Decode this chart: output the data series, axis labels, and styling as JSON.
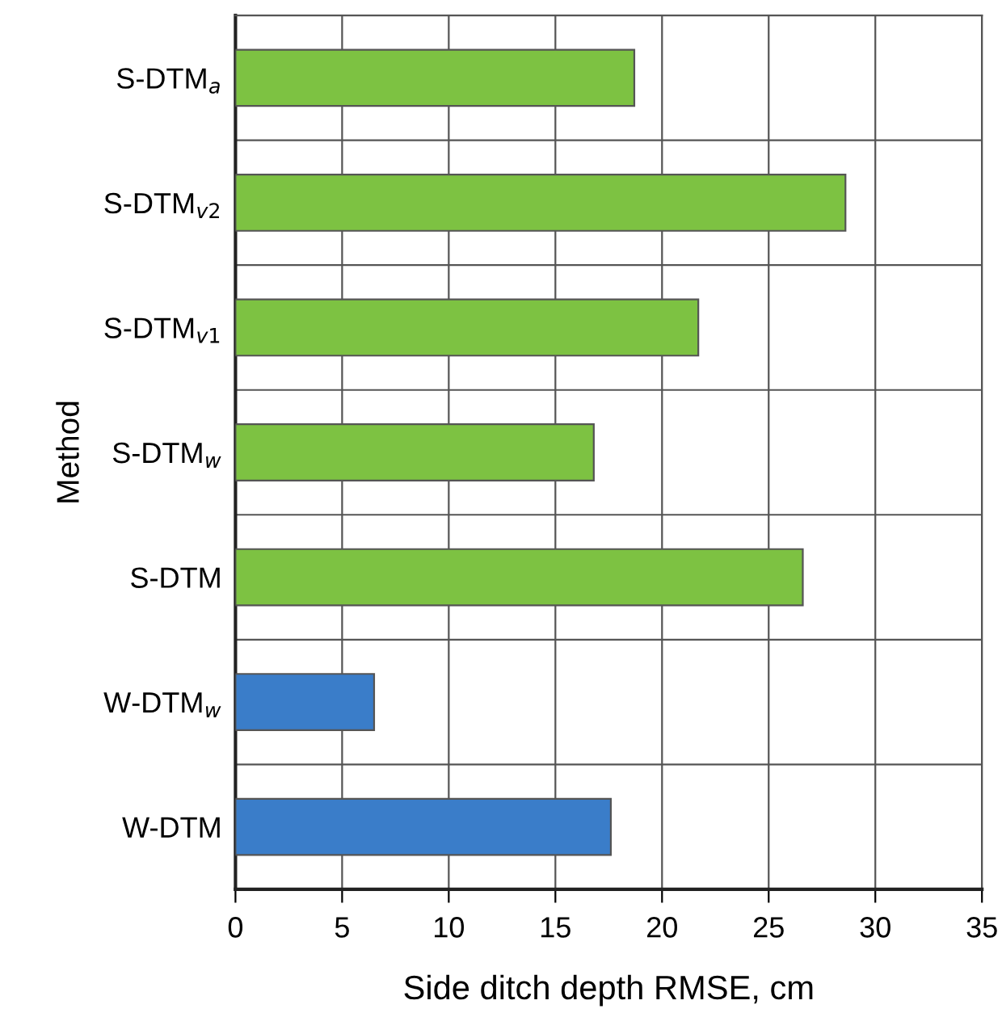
{
  "chart_data": {
    "type": "bar",
    "orientation": "horizontal",
    "xlabel": "Side ditch depth RMSE, cm",
    "ylabel": "Method",
    "categories": [
      "S-DTM$_{a}$",
      "S-DTM$_{v2}$",
      "S-DTM$_{v1}$",
      "S-DTM$_{w}$",
      "S-DTM",
      "W-DTM$_{w}$",
      "W-DTM"
    ],
    "values": [
      18.7,
      28.6,
      21.7,
      16.8,
      26.6,
      6.5,
      17.6
    ],
    "colors": [
      "#7dc242",
      "#7dc242",
      "#7dc242",
      "#7dc242",
      "#7dc242",
      "#3a7dc9",
      "#3a7dc9"
    ],
    "xlim": [
      0,
      35
    ],
    "xticks": [
      0,
      5,
      10,
      15,
      20,
      25,
      30,
      35
    ],
    "grid": true
  }
}
